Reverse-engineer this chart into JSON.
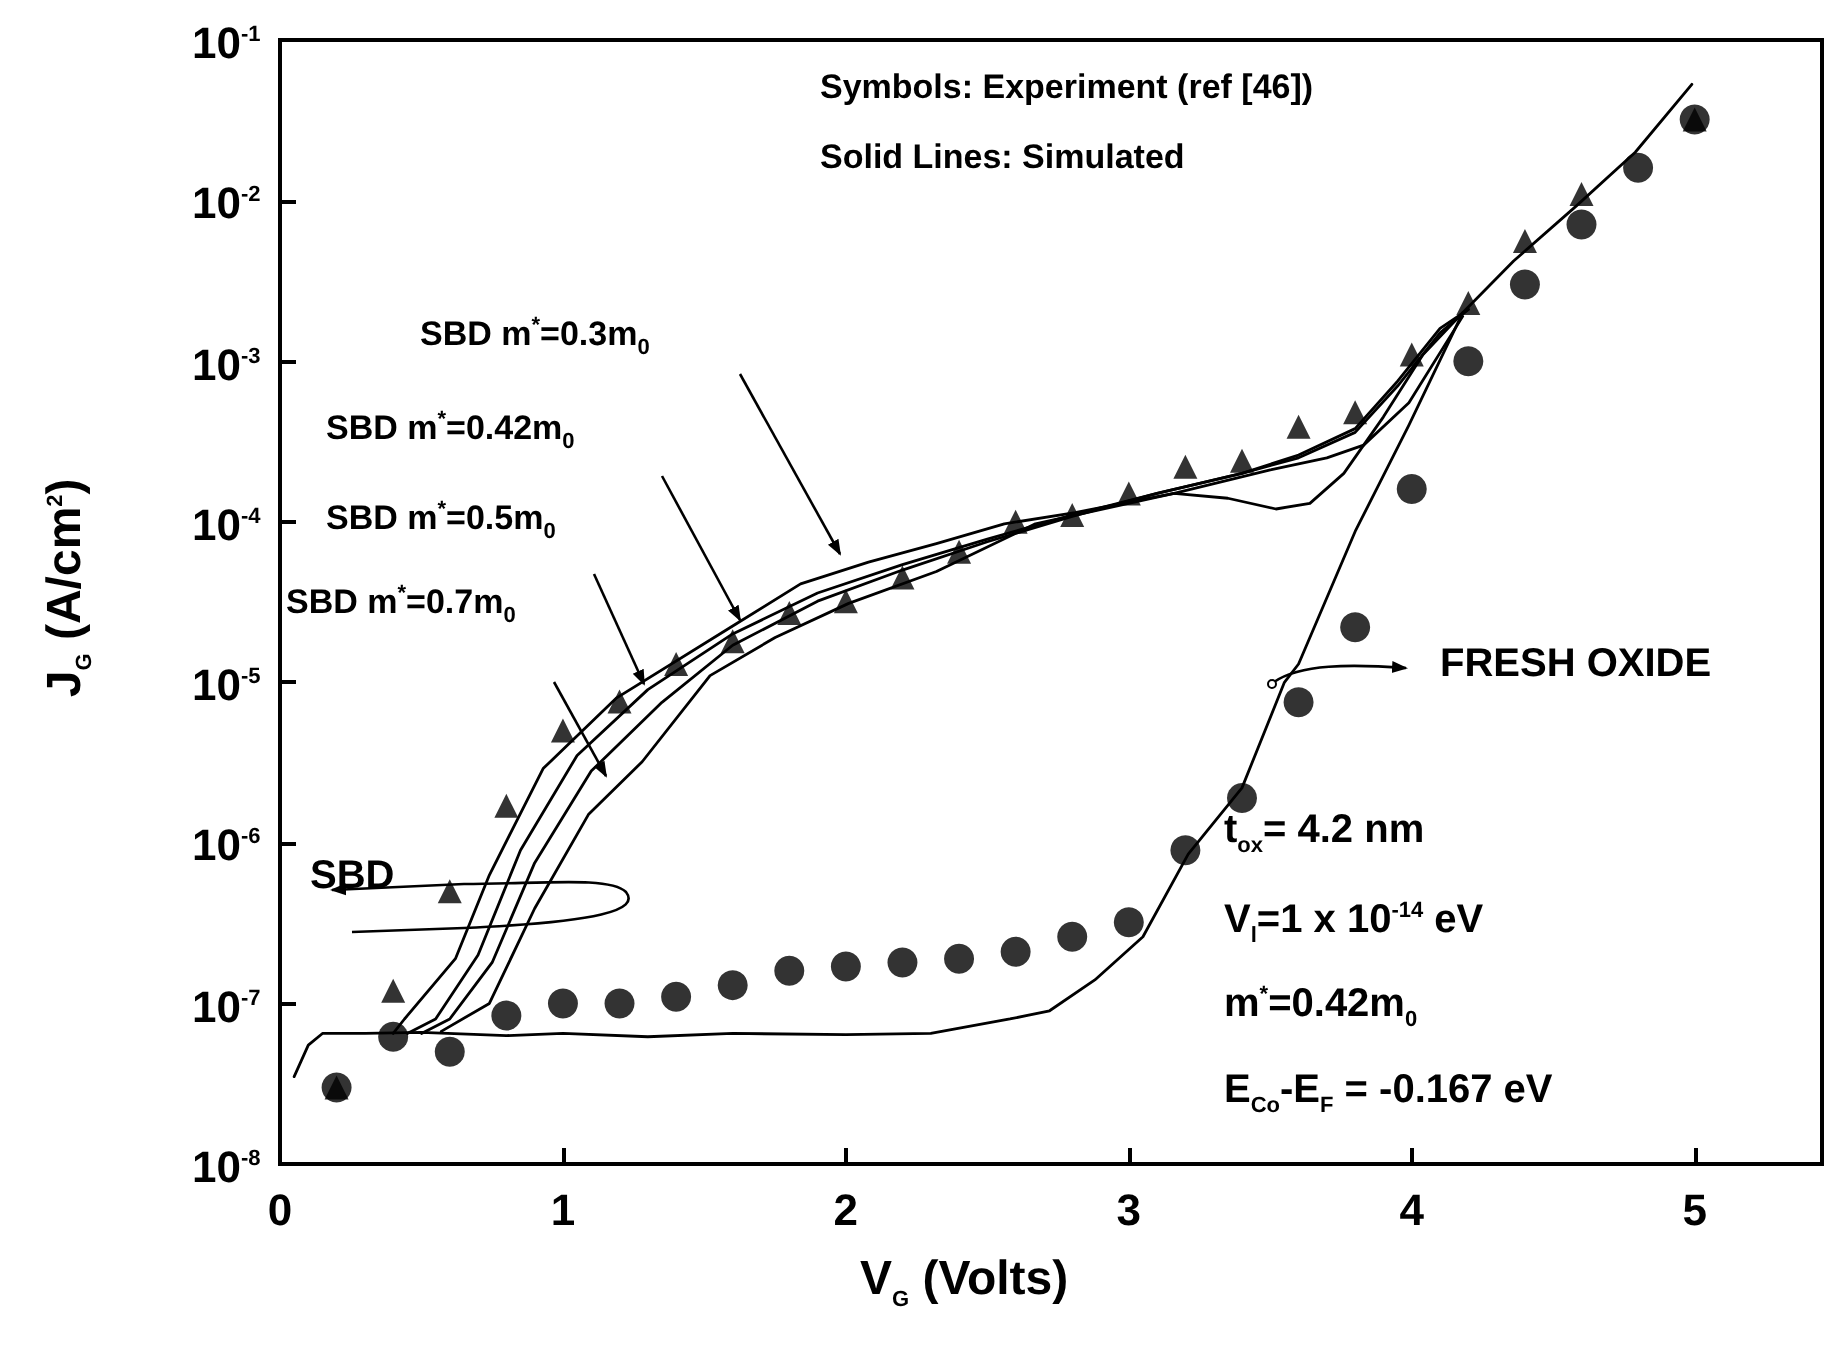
{
  "chart_data": {
    "type": "scatter",
    "xlabel": "V$_{G}$ (Volts)",
    "ylabel": "J$_{G}$ (A/cm$^{2}$)",
    "xlim": [
      0,
      5.45
    ],
    "xticks": [
      0,
      1,
      2,
      3,
      4,
      5
    ],
    "ylim": [
      1e-08,
      0.1
    ],
    "yticks": [
      {
        "value": 1e-08,
        "label": "10$^{-8}$"
      },
      {
        "value": 1e-07,
        "label": "10$^{-7}$"
      },
      {
        "value": 1e-06,
        "label": "10$^{-6}$"
      },
      {
        "value": 1e-05,
        "label": "10$^{-5}$"
      },
      {
        "value": 0.0001,
        "label": "10$^{-4}$"
      },
      {
        "value": 0.001,
        "label": "10$^{-3}$"
      },
      {
        "value": 0.01,
        "label": "10$^{-2}$"
      },
      {
        "value": 0.1,
        "label": "10$^{-1}$"
      }
    ],
    "log": "y",
    "grid": false,
    "legend": false,
    "annotations": [
      "Symbols: Experiment (ref [46])",
      "Solid Lines: Simulated",
      "SBD",
      "FRESH OXIDE",
      "t$_{ox}$= 4.2 nm",
      "V$_{l}$=1 x 10$^{-14}$ eV",
      "m$^{*}$=0.42m$_{0}$",
      "E$_{Co}$-E$_{F}$ = -0.167 eV",
      "SBD m$^{*}$=0.3m$_{0}$",
      "SBD m$^{*}$=0.42m$_{0}$",
      "SBD m$^{*}$=0.5m$_{0}$",
      "SBD m$^{*}$=0.7m$_{0}$"
    ],
    "series": [
      {
        "marker": "circle",
        "color": "#000000",
        "x": [
          0.2,
          0.4,
          0.6,
          0.8,
          1.0,
          1.2,
          1.4,
          1.6,
          1.8,
          2.0,
          2.2,
          2.4,
          2.6,
          2.8,
          3.0,
          3.2,
          3.4,
          3.6,
          3.8,
          4.0,
          4.2,
          4.4,
          4.6,
          4.8,
          5.0
        ],
        "values": [
          3e-08,
          6.2e-08,
          5e-08,
          8.4e-08,
          1e-07,
          1e-07,
          1.1e-07,
          1.3e-07,
          1.6e-07,
          1.7e-07,
          1.8e-07,
          1.9e-07,
          2.1e-07,
          2.6e-07,
          3.2e-07,
          9e-07,
          1.9e-06,
          7.5e-06,
          2.2e-05,
          0.00016,
          0.001,
          0.003,
          0.0071,
          0.016,
          0.032
        ]
      },
      {
        "marker": "triangle",
        "color": "#000000",
        "x": [
          0.2,
          0.4,
          0.6,
          0.8,
          1.0,
          1.2,
          1.4,
          1.6,
          1.8,
          2.0,
          2.2,
          2.4,
          2.6,
          2.8,
          3.0,
          3.2,
          3.4,
          3.6,
          3.8,
          4.0,
          4.2,
          4.4,
          4.6,
          5.0
        ],
        "values": [
          3e-08,
          1.2e-07,
          5e-07,
          1.7e-06,
          5e-06,
          7.6e-06,
          1.3e-05,
          1.8e-05,
          2.7e-05,
          3.2e-05,
          4.5e-05,
          6.5e-05,
          0.0001,
          0.00011,
          0.00015,
          0.00022,
          0.00024,
          0.00039,
          0.00048,
          0.0011,
          0.0023,
          0.0056,
          0.011,
          0.032
        ]
      },
      {
        "type": "line",
        "color": "#000000",
        "marker": "none",
        "line_style": "solid",
        "x": [
          0.4,
          0.44,
          0.62,
          0.74,
          0.93,
          1.19,
          1.61,
          1.84,
          2.08,
          2.32,
          2.56,
          2.81,
          3.16,
          3.35,
          3.52,
          3.64,
          3.76,
          3.9,
          4.04,
          4.18
        ],
        "values": [
          6.5e-08,
          8e-08,
          1.9e-07,
          6.3e-07,
          2.9e-06,
          8e-06,
          2.3e-05,
          4.1e-05,
          5.6e-05,
          7.3e-05,
          9.7e-05,
          0.000114,
          0.00015,
          0.00014,
          0.00012,
          0.00013,
          0.0002,
          0.00045,
          0.0011,
          0.002
        ]
      },
      {
        "type": "line",
        "color": "#000000",
        "marker": "none",
        "line_style": "solid",
        "x": [
          0.45,
          0.55,
          0.7,
          0.85,
          1.05,
          1.3,
          1.6,
          1.9,
          2.2,
          2.5,
          2.8,
          3.1,
          3.4,
          3.6,
          3.8,
          3.95,
          4.1,
          4.2
        ],
        "values": [
          6.5e-08,
          8e-08,
          2e-07,
          9e-07,
          3.5e-06,
          9e-06,
          2e-05,
          3.6e-05,
          5.4e-05,
          7.8e-05,
          0.00011,
          0.00015,
          0.0002,
          0.00025,
          0.00036,
          0.0007,
          0.0015,
          0.0021
        ]
      },
      {
        "type": "line",
        "color": "#000000",
        "marker": "none",
        "line_style": "solid",
        "x": [
          0.5,
          0.6,
          0.75,
          0.9,
          1.1,
          1.35,
          1.6,
          1.9,
          2.2,
          2.5,
          2.8,
          3.1,
          3.4,
          3.6,
          3.8,
          3.95,
          4.1,
          4.2
        ],
        "values": [
          6.5e-08,
          8e-08,
          1.8e-07,
          7.5e-07,
          2.8e-06,
          7.5e-06,
          1.7e-05,
          3.2e-05,
          5e-05,
          7.5e-05,
          0.000108,
          0.00015,
          0.0002,
          0.00026,
          0.00038,
          0.00075,
          0.0016,
          0.0021
        ]
      },
      {
        "type": "line",
        "color": "#000000",
        "marker": "none",
        "line_style": "solid",
        "x": [
          0.57,
          0.74,
          0.9,
          1.09,
          1.28,
          1.52,
          1.75,
          2.01,
          2.32,
          2.67,
          3.16,
          3.5,
          3.7,
          3.83,
          3.99,
          4.18
        ],
        "values": [
          6.7e-08,
          1e-07,
          3.9e-07,
          1.5e-06,
          3.2e-06,
          1.1e-05,
          1.9e-05,
          3.1e-05,
          4.9e-05,
          9.7e-05,
          0.00015,
          0.00021,
          0.00025,
          0.0003,
          0.00055,
          0.0019
        ]
      },
      {
        "type": "line",
        "color": "#000000",
        "marker": "none",
        "line_style": "solid",
        "x": [
          0.05,
          0.1,
          0.15,
          0.3,
          0.5,
          0.8,
          1.0,
          1.3,
          1.6,
          2.0,
          2.3,
          2.58,
          2.72,
          2.88,
          3.05,
          3.21,
          3.4,
          3.55,
          3.6,
          3.8,
          3.99,
          4.18,
          4.36,
          4.58,
          4.79,
          4.99
        ],
        "values": [
          3.5e-08,
          5.5e-08,
          6.5e-08,
          6.5e-08,
          6.6e-08,
          6.3e-08,
          6.5e-08,
          6.2e-08,
          6.5e-08,
          6.4e-08,
          6.5e-08,
          8e-08,
          9e-08,
          1.4e-07,
          2.6e-07,
          8.5e-07,
          2.2e-06,
          1e-05,
          1.3e-05,
          8.7e-05,
          0.0004,
          0.002,
          0.0042,
          0.0092,
          0.02,
          0.053
        ]
      }
    ]
  }
}
